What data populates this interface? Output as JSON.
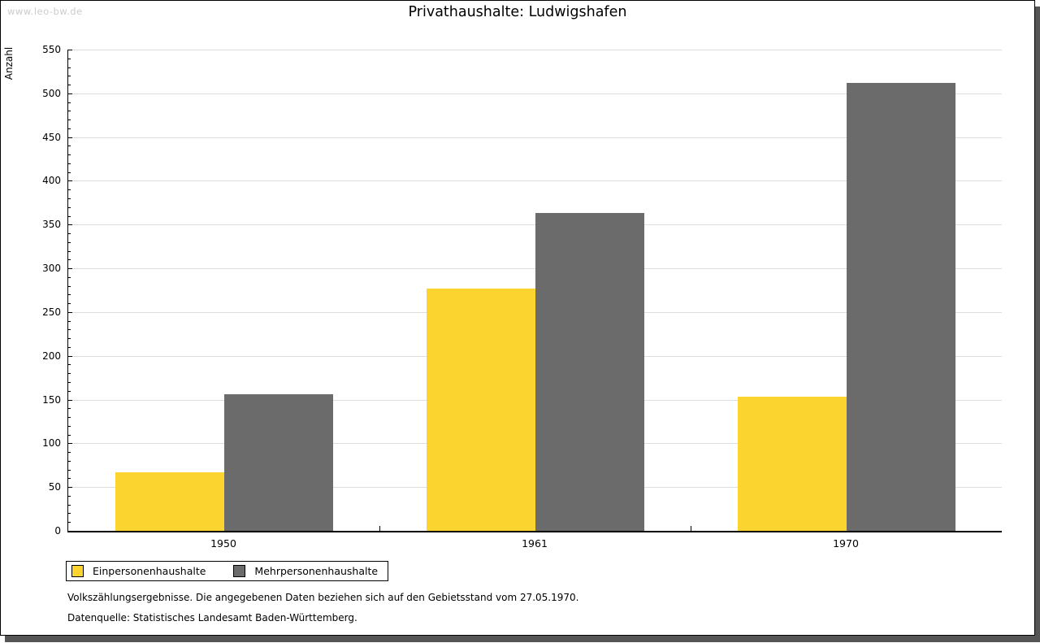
{
  "page": {
    "watermark": "www.leo-bw.de",
    "footnote_line1": "Volkszählungsergebnisse. Die angegebenen Daten beziehen sich auf den Gebietsstand vom 27.05.1970.",
    "footnote_line2": "Datenquelle: Statistisches Landesamt Baden-Württemberg."
  },
  "chart_data": {
    "type": "bar",
    "title": "Privathaushalte: Ludwigshafen",
    "xlabel": "",
    "ylabel": "Anzahl",
    "ylim": [
      0,
      550
    ],
    "ytick_step": 50,
    "y_minor_tick_step": 10,
    "grid": "horizontal-major",
    "legend_position": "bottom-left",
    "categories": [
      "1950",
      "1961",
      "1970"
    ],
    "series": [
      {
        "name": "Einpersonenhaushalte",
        "color": "#FBD42F",
        "values": [
          67,
          277,
          153
        ]
      },
      {
        "name": "Mehrpersonenhaushalte",
        "color": "#6B6B6B",
        "values": [
          156,
          363,
          512
        ]
      }
    ],
    "colors": {
      "gridline": "#DDDDDD",
      "axis": "#000000",
      "shadow": "#555555",
      "watermark": "#CCCCCC"
    }
  }
}
